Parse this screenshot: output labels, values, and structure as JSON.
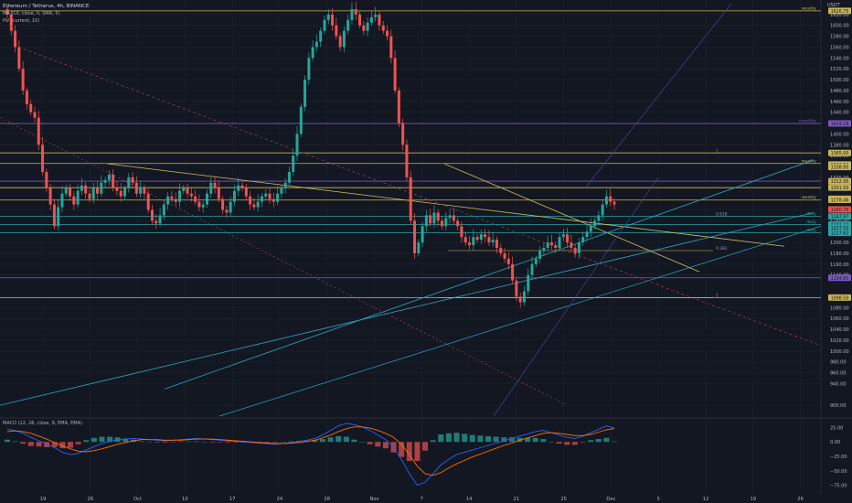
{
  "header": {
    "symbol_title": "Ethereum / Tetherus, 4h, BINANCE",
    "indicator_ma": "MA (10, close, 0, SMA, 5)",
    "indicator_hv": "HV (current, 10)",
    "quote_currency": "USDT"
  },
  "macd_panel": {
    "label": "MACD (12, 26, close, 9, EMA, EMA)"
  },
  "colors": {
    "background": "#131722",
    "up_candle": "#26a69a",
    "down_candle": "#ef5350",
    "weekly_line": "#c9b458",
    "daily_line": "#2aa2a6",
    "monthly_line": "#7e57c2",
    "trendline": "#d4c05c",
    "channel_line": "#2aa8c0",
    "macd_line": "#2962ff",
    "signal_line": "#ff6d00"
  },
  "chart_data": [
    {
      "type": "line",
      "title": "",
      "xlabel": "",
      "ylabel": "",
      "y_axis_ticks": [
        900,
        940,
        960,
        980,
        1000,
        1020,
        1040,
        1060,
        1080,
        1100,
        1140,
        1160,
        1180,
        1200,
        1220,
        1240,
        1260,
        1300,
        1320,
        1340,
        1360,
        1380,
        1400,
        1420,
        1440,
        1460,
        1480,
        1500,
        1520,
        1540,
        1560,
        1580,
        1600,
        1620
      ],
      "x_axis_ticks": [
        "19",
        "26",
        "Oct",
        "10",
        "17",
        "24",
        "28",
        "Nov",
        "7",
        "14",
        "21",
        "25",
        "Dec",
        "5",
        "12",
        "19",
        "26"
      ],
      "ylim": [
        880,
        1640
      ],
      "grid": true,
      "price_series_close": [
        1620,
        1590,
        1560,
        1520,
        1480,
        1455,
        1440,
        1430,
        1380,
        1330,
        1300,
        1270,
        1230,
        1265,
        1290,
        1300,
        1285,
        1270,
        1295,
        1305,
        1290,
        1280,
        1300,
        1290,
        1310,
        1315,
        1325,
        1300,
        1295,
        1285,
        1300,
        1320,
        1310,
        1290,
        1300,
        1290,
        1260,
        1240,
        1235,
        1250,
        1270,
        1285,
        1280,
        1275,
        1295,
        1300,
        1290,
        1285,
        1275,
        1265,
        1270,
        1290,
        1310,
        1300,
        1280,
        1260,
        1255,
        1275,
        1295,
        1305,
        1300,
        1285,
        1270,
        1265,
        1275,
        1285,
        1290,
        1280,
        1275,
        1290,
        1300,
        1310,
        1330,
        1360,
        1400,
        1450,
        1500,
        1540,
        1560,
        1570,
        1590,
        1610,
        1620,
        1600,
        1580,
        1560,
        1590,
        1610,
        1630,
        1620,
        1600,
        1590,
        1605,
        1615,
        1620,
        1600,
        1590,
        1580,
        1540,
        1480,
        1420,
        1380,
        1320,
        1240,
        1180,
        1200,
        1230,
        1250,
        1235,
        1255,
        1240,
        1230,
        1245,
        1250,
        1240,
        1230,
        1210,
        1200,
        1195,
        1210,
        1205,
        1215,
        1210,
        1200,
        1205,
        1190,
        1180,
        1170,
        1160,
        1130,
        1100,
        1090,
        1110,
        1140,
        1160,
        1170,
        1185,
        1190,
        1200,
        1195,
        1190,
        1210,
        1215,
        1200,
        1190,
        1180,
        1200,
        1210,
        1220,
        1230,
        1240,
        1250,
        1270,
        1285,
        1275,
        1270
      ],
      "weekly_levels": [
        {
          "label": "weekly",
          "value": 1626.75
        },
        {
          "label": "weekly",
          "value": 1345.52
        },
        {
          "label": "weekly",
          "value": 1278.17
        }
      ],
      "daily_levels": [
        {
          "label": "daily",
          "value": 1247.97
        },
        {
          "label": "daily",
          "value": 1233.22
        },
        {
          "label": "daily",
          "value": 1217.62
        }
      ],
      "price_labels": [
        "1626.75",
        "1419.18",
        "1365.00",
        "1343.52",
        "1338.95",
        "1312.95",
        "1301.00",
        "1280.50",
        "1278.46",
        "1260.76",
        "1247.97",
        "1233.22",
        "1227.32",
        "1217.62",
        "1134.85",
        "1098.50"
      ],
      "fib_labels": [
        "0.382",
        "0.618",
        "1",
        "1"
      ],
      "monthly_label": "monthly"
    },
    {
      "type": "line",
      "title": "MACD (12, 26, close, 9, EMA, EMA)",
      "y_axis_ticks": [
        "25.00",
        "0.00",
        "−25.00",
        "−50.00",
        "−75.00"
      ],
      "ylim": [
        -90,
        40
      ],
      "macd": [
        22,
        20,
        15,
        8,
        2,
        -4,
        -10,
        -18,
        -22,
        -20,
        -14,
        -8,
        -3,
        1,
        4,
        5,
        6,
        5,
        4,
        3,
        2,
        3,
        4,
        5,
        6,
        5,
        4,
        3,
        2,
        1,
        0,
        -1,
        -2,
        -3,
        -4,
        -3,
        -1,
        1,
        3,
        6,
        12,
        20,
        28,
        32,
        30,
        26,
        20,
        12,
        4,
        -10,
        -30,
        -55,
        -75,
        -70,
        -55,
        -40,
        -30,
        -22,
        -18,
        -14,
        -10,
        -6,
        -2,
        2,
        6,
        10,
        14,
        18,
        20,
        16,
        12,
        8,
        6,
        10,
        16,
        22,
        28,
        24
      ],
      "signal": [
        18,
        19,
        18,
        15,
        10,
        5,
        -1,
        -7,
        -12,
        -16,
        -17,
        -15,
        -12,
        -8,
        -4,
        -1,
        2,
        4,
        4,
        4,
        3,
        3,
        3,
        4,
        5,
        5,
        5,
        4,
        3,
        2,
        1,
        0,
        -1,
        -2,
        -3,
        -3,
        -2,
        -1,
        1,
        3,
        7,
        12,
        18,
        23,
        26,
        26,
        24,
        20,
        15,
        8,
        -4,
        -22,
        -42,
        -55,
        -58,
        -53,
        -45,
        -38,
        -32,
        -26,
        -21,
        -16,
        -11,
        -6,
        -2,
        3,
        7,
        11,
        15,
        16,
        15,
        13,
        11,
        11,
        13,
        17,
        21,
        23
      ]
    }
  ]
}
